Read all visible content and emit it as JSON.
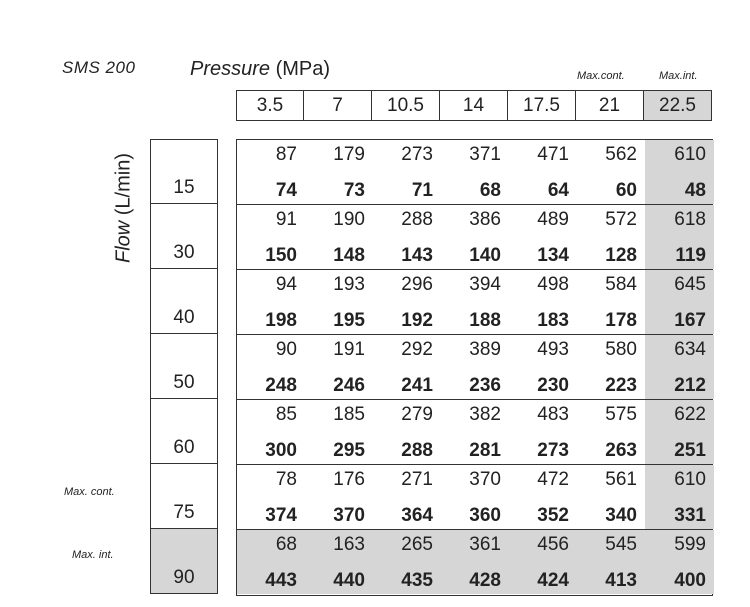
{
  "model": "SMS  200",
  "pressure_title_italic": "Pressure",
  "pressure_title_unit": " (MPa)",
  "flow_title_italic": "Flow",
  "flow_title_unit": "  (L/min)",
  "top_labels": {
    "max_cont": "Max.cont.",
    "max_int": "Max.int."
  },
  "side_labels": {
    "max_cont": "Max. cont.",
    "max_int": "Max. int."
  },
  "pressures": [
    "3.5",
    "7",
    "10.5",
    "14",
    "17.5",
    "21",
    "22.5"
  ],
  "rows": [
    {
      "flow": "15",
      "top": [
        "87",
        "179",
        "273",
        "371",
        "471",
        "562",
        "610"
      ],
      "bottom": [
        "74",
        "73",
        "71",
        "68",
        "64",
        "60",
        "48"
      ]
    },
    {
      "flow": "30",
      "top": [
        "91",
        "190",
        "288",
        "386",
        "489",
        "572",
        "618"
      ],
      "bottom": [
        "150",
        "148",
        "143",
        "140",
        "134",
        "128",
        "119"
      ]
    },
    {
      "flow": "40",
      "top": [
        "94",
        "193",
        "296",
        "394",
        "498",
        "584",
        "645"
      ],
      "bottom": [
        "198",
        "195",
        "192",
        "188",
        "183",
        "178",
        "167"
      ]
    },
    {
      "flow": "50",
      "top": [
        "90",
        "191",
        "292",
        "389",
        "493",
        "580",
        "634"
      ],
      "bottom": [
        "248",
        "246",
        "241",
        "236",
        "230",
        "223",
        "212"
      ]
    },
    {
      "flow": "60",
      "top": [
        "85",
        "185",
        "279",
        "382",
        "483",
        "575",
        "622"
      ],
      "bottom": [
        "300",
        "295",
        "288",
        "281",
        "273",
        "263",
        "251"
      ]
    },
    {
      "flow": "75",
      "top": [
        "78",
        "176",
        "271",
        "370",
        "472",
        "561",
        "610"
      ],
      "bottom": [
        "374",
        "370",
        "364",
        "360",
        "352",
        "340",
        "331"
      ]
    },
    {
      "flow": "90",
      "top": [
        "68",
        "163",
        "265",
        "361",
        "456",
        "545",
        "599"
      ],
      "bottom": [
        "443",
        "440",
        "435",
        "428",
        "424",
        "413",
        "400"
      ]
    }
  ]
}
